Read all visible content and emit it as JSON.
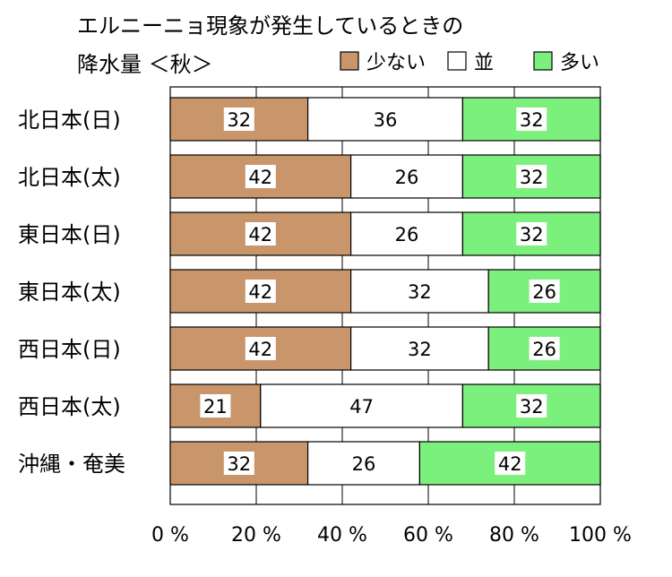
{
  "chart_data": {
    "type": "bar",
    "stacked": true,
    "orientation": "horizontal",
    "title_lines": [
      "エルニーニョ現象が発生しているときの",
      "降水量 ＜秋＞"
    ],
    "categories": [
      "北日本(日)",
      "北日本(太)",
      "東日本(日)",
      "東日本(太)",
      "西日本(日)",
      "西日本(太)",
      "沖縄・奄美"
    ],
    "series": [
      {
        "name": "少ない",
        "color": "#c8966a",
        "values": [
          32,
          42,
          42,
          42,
          42,
          21,
          32
        ]
      },
      {
        "name": "並",
        "color": "#ffffff",
        "values": [
          36,
          26,
          26,
          32,
          32,
          47,
          26
        ]
      },
      {
        "name": "多い",
        "color": "#7cf07c",
        "values": [
          32,
          32,
          32,
          26,
          26,
          32,
          42
        ]
      }
    ],
    "xlim": [
      0,
      100
    ],
    "xticks": [
      0,
      20,
      40,
      60,
      80,
      100
    ],
    "xtick_labels": [
      "0 %",
      "20 %",
      "40 %",
      "60 %",
      "80 %",
      "100 %"
    ],
    "grid": true,
    "legend_position": "top-right"
  }
}
